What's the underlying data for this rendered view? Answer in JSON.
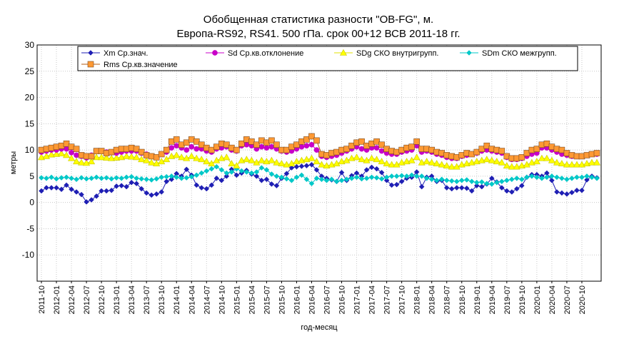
{
  "chart_data": {
    "type": "line",
    "title_lines": [
      "Обобщенная статистика разности \"OB-FG\", м.",
      "Европа-RS92, RS41. 500 гПа. срок 00+12 ВСВ 2011-18 гг."
    ],
    "xlabel": "год-месяц",
    "ylabel": "метры",
    "ylim": [
      -15,
      30
    ],
    "yticks": [
      -10,
      -5,
      0,
      5,
      10,
      15,
      20,
      25,
      30
    ],
    "grid": true,
    "legend_position": "top",
    "x_ticks": [
      "2011-10",
      "2012-01",
      "2012-04",
      "2012-07",
      "2012-10",
      "2013-01",
      "2013-04",
      "2013-07",
      "2013-10",
      "2014-01",
      "2014-04",
      "2014-07",
      "2014-10",
      "2015-01",
      "2015-04",
      "2015-07",
      "2015-10",
      "2016-01",
      "2016-04",
      "2016-07",
      "2016-10",
      "2017-01",
      "2017-04",
      "2017-07",
      "2017-10",
      "2018-01",
      "2018-04",
      "2018-07",
      "2018-10",
      "2019-01",
      "2019-04",
      "2019-07",
      "2019-10",
      "2020-01",
      "2020-04",
      "2020-07",
      "2020-10"
    ],
    "x_start": "2011-10",
    "n_points": 112,
    "series": [
      {
        "name": "Xm Ср.знач.",
        "color": "#1f1fb4",
        "marker": "diamond",
        "values": [
          2.2,
          2.8,
          2.8,
          2.8,
          2.5,
          3.3,
          2.5,
          2.0,
          1.5,
          0.1,
          0.5,
          1.2,
          2.2,
          2.2,
          2.3,
          3.1,
          3.2,
          3.0,
          3.8,
          3.6,
          2.6,
          1.8,
          1.4,
          1.6,
          2.0,
          4.0,
          4.4,
          5.5,
          5.0,
          6.3,
          5.2,
          3.3,
          2.8,
          2.6,
          3.3,
          4.6,
          4.2,
          5.0,
          6.3,
          5.2,
          5.6,
          6.1,
          5.4,
          5.0,
          4.2,
          4.4,
          3.5,
          3.2,
          4.6,
          5.5,
          6.6,
          6.8,
          6.9,
          7.0,
          7.2,
          6.2,
          5.0,
          4.6,
          4.3,
          4.0,
          5.7,
          4.2,
          5.1,
          5.6,
          5.0,
          6.2,
          6.7,
          6.4,
          5.7,
          4.2,
          3.3,
          3.4,
          4.0,
          4.6,
          4.8,
          5.8,
          3.0,
          4.8,
          5.0,
          4.0,
          4.2,
          2.8,
          2.6,
          2.8,
          2.8,
          2.7,
          2.2,
          3.2,
          3.0,
          3.5,
          4.6,
          3.9,
          2.8,
          2.2,
          2.0,
          2.6,
          3.2,
          4.8,
          5.3,
          5.3,
          5.0,
          5.6,
          4.2,
          2.0,
          1.8,
          1.6,
          1.9,
          2.3,
          2.3,
          4.3,
          5.0,
          4.7
        ]
      },
      {
        "name": "Sd Ср.кв.отклонение",
        "color": "#c800c8",
        "marker": "circle",
        "values": [
          9.6,
          9.8,
          10.0,
          10.0,
          10.2,
          10.2,
          9.5,
          9.0,
          8.8,
          8.5,
          9.0,
          9.8,
          9.8,
          9.6,
          9.5,
          9.4,
          9.6,
          9.8,
          9.8,
          9.8,
          9.4,
          9.2,
          8.8,
          8.6,
          9.2,
          9.6,
          10.4,
          10.8,
          10.4,
          10.0,
          10.6,
          10.2,
          10.2,
          9.8,
          9.6,
          10.2,
          10.4,
          10.6,
          10.0,
          9.8,
          10.8,
          11.0,
          10.8,
          10.2,
          10.6,
          10.4,
          10.6,
          10.2,
          9.8,
          9.6,
          9.8,
          10.2,
          10.6,
          10.8,
          11.0,
          10.0,
          8.8,
          8.6,
          8.8,
          9.0,
          9.4,
          9.8,
          10.2,
          10.6,
          10.2,
          10.0,
          10.4,
          10.4,
          9.8,
          9.4,
          9.2,
          9.2,
          9.6,
          9.8,
          10.0,
          10.8,
          9.6,
          9.8,
          9.6,
          9.2,
          9.0,
          8.6,
          8.4,
          8.4,
          8.8,
          9.0,
          9.2,
          9.4,
          9.8,
          10.0,
          9.8,
          9.6,
          9.4,
          8.6,
          8.2,
          8.2,
          8.4,
          8.8,
          9.2,
          9.4,
          10.4,
          10.4,
          10.0,
          9.6,
          9.2,
          9.0,
          8.8,
          8.8,
          8.8,
          9.0,
          9.2,
          9.2
        ]
      },
      {
        "name": "SDg СКО внутригрупп.",
        "color": "#ffff00",
        "marker": "triangle",
        "values": [
          8.6,
          8.8,
          9.1,
          9.2,
          9.3,
          9.0,
          8.4,
          7.8,
          7.6,
          7.5,
          7.8,
          8.6,
          8.6,
          8.5,
          8.4,
          8.5,
          8.6,
          8.8,
          8.7,
          8.6,
          8.2,
          8.0,
          7.6,
          7.4,
          7.8,
          8.2,
          8.8,
          9.0,
          8.6,
          8.4,
          8.8,
          8.4,
          8.2,
          7.8,
          7.4,
          8.0,
          8.4,
          8.6,
          7.4,
          7.0,
          8.0,
          8.2,
          8.0,
          7.6,
          8.0,
          7.8,
          8.0,
          7.6,
          7.4,
          7.2,
          7.4,
          7.8,
          8.0,
          8.2,
          8.4,
          7.8,
          7.2,
          7.0,
          7.2,
          7.4,
          7.8,
          8.0,
          8.4,
          8.6,
          8.2,
          8.0,
          8.4,
          8.2,
          7.8,
          7.4,
          7.2,
          7.2,
          7.6,
          7.8,
          8.0,
          8.6,
          7.6,
          7.8,
          7.6,
          7.4,
          7.2,
          7.0,
          6.8,
          6.8,
          7.2,
          7.4,
          7.6,
          7.8,
          8.0,
          8.2,
          8.0,
          7.8,
          7.6,
          7.0,
          6.8,
          6.8,
          7.0,
          7.2,
          7.6,
          7.8,
          8.4,
          8.4,
          8.0,
          7.6,
          7.4,
          7.2,
          7.2,
          7.2,
          7.2,
          7.4,
          7.6,
          7.6
        ]
      },
      {
        "name": "SDm СКО межгрупп.",
        "color": "#00c8c8",
        "marker": "diamond",
        "values": [
          4.7,
          4.6,
          4.8,
          4.5,
          4.7,
          4.8,
          4.6,
          4.4,
          4.7,
          4.5,
          4.6,
          4.8,
          4.6,
          4.7,
          4.5,
          4.7,
          4.6,
          4.8,
          4.9,
          4.6,
          4.5,
          4.4,
          4.3,
          4.5,
          4.8,
          4.9,
          5.0,
          4.8,
          4.6,
          4.7,
          4.9,
          5.2,
          5.6,
          6.0,
          6.4,
          6.8,
          6.2,
          5.6,
          5.8,
          6.4,
          6.0,
          5.8,
          5.6,
          5.8,
          6.6,
          6.2,
          5.4,
          5.0,
          4.8,
          4.5,
          4.2,
          4.8,
          5.2,
          4.4,
          3.6,
          4.6,
          4.4,
          4.2,
          4.4,
          4.0,
          4.2,
          4.4,
          4.6,
          4.8,
          4.5,
          4.6,
          4.8,
          4.7,
          4.5,
          4.8,
          5.0,
          5.0,
          5.1,
          5.0,
          5.2,
          5.0,
          5.0,
          4.6,
          4.4,
          4.2,
          4.4,
          4.2,
          4.1,
          4.0,
          4.2,
          4.3,
          4.0,
          3.8,
          3.9,
          3.6,
          3.5,
          3.8,
          4.0,
          4.2,
          4.4,
          4.6,
          4.4,
          4.8,
          5.0,
          4.8,
          4.6,
          4.8,
          5.0,
          4.8,
          4.6,
          4.4,
          4.6,
          4.8,
          4.8,
          5.0,
          4.8,
          4.6
        ]
      },
      {
        "name": "Rms Ср.кв.значение",
        "color": "#ff9933",
        "marker": "square",
        "values": [
          10.0,
          10.2,
          10.4,
          10.6,
          10.8,
          11.2,
          10.6,
          10.2,
          9.0,
          8.8,
          8.8,
          9.8,
          9.8,
          9.4,
          9.6,
          10.0,
          10.2,
          10.2,
          10.4,
          10.2,
          9.6,
          9.0,
          8.8,
          8.6,
          9.2,
          10.0,
          11.6,
          12.0,
          11.0,
          11.4,
          12.0,
          11.6,
          11.0,
          10.4,
          10.0,
          10.6,
          11.2,
          11.0,
          10.4,
          10.0,
          11.2,
          12.0,
          11.6,
          11.0,
          11.8,
          11.4,
          11.8,
          11.0,
          10.0,
          10.0,
          10.6,
          11.0,
          11.6,
          12.0,
          12.6,
          11.8,
          9.2,
          9.0,
          9.4,
          9.6,
          10.0,
          10.2,
          10.8,
          11.4,
          11.6,
          10.8,
          11.2,
          11.6,
          11.0,
          10.2,
          9.8,
          9.6,
          10.0,
          10.4,
          10.6,
          11.6,
          10.2,
          10.2,
          10.0,
          9.6,
          9.4,
          9.0,
          8.8,
          8.6,
          9.0,
          9.4,
          9.2,
          9.6,
          10.2,
          10.8,
          10.2,
          10.0,
          9.8,
          8.8,
          8.4,
          8.4,
          8.6,
          9.4,
          10.0,
          10.2,
          11.0,
          11.2,
          10.6,
          10.2,
          10.0,
          9.4,
          9.0,
          8.8,
          8.8,
          9.0,
          9.2,
          9.4
        ]
      }
    ]
  }
}
